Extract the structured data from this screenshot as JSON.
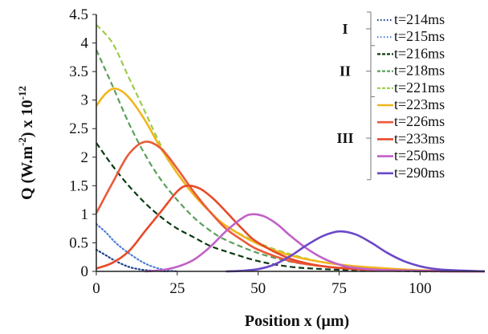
{
  "chart_data": {
    "type": "line",
    "xlabel": "Position x (µm)",
    "ylabel_main": "Q (W.m",
    "ylabel_sup1": "-2",
    "ylabel_mid": ") x 10",
    "ylabel_sup2": "-12",
    "xlim": [
      0,
      120
    ],
    "ylim": [
      0,
      4.5
    ],
    "x_ticks": [
      {
        "value": 0,
        "label": "0"
      },
      {
        "value": 25,
        "label": "25"
      },
      {
        "value": 50,
        "label": "50"
      },
      {
        "value": 75,
        "label": "75"
      },
      {
        "value": 100,
        "label": "100"
      }
    ],
    "y_ticks": [
      {
        "value": 0,
        "label": "0"
      },
      {
        "value": 0.5,
        "label": "0.5"
      },
      {
        "value": 1,
        "label": "1"
      },
      {
        "value": 1.5,
        "label": "1.5"
      },
      {
        "value": 2,
        "label": "2"
      },
      {
        "value": 2.5,
        "label": "2.5"
      },
      {
        "value": 3,
        "label": "3"
      },
      {
        "value": 3.5,
        "label": "3.5"
      },
      {
        "value": 4,
        "label": "4"
      },
      {
        "value": 4.5,
        "label": "4.5"
      }
    ],
    "grid": false,
    "legend_position": "right",
    "series": [
      {
        "name": "t=214ms",
        "color": "#1f3f8f",
        "dash": "dotted",
        "x": [
          0,
          3,
          6,
          10,
          14,
          18,
          22
        ],
        "y": [
          0.38,
          0.28,
          0.18,
          0.08,
          0.03,
          0.01,
          0
        ]
      },
      {
        "name": "t=215ms",
        "color": "#4f7fd8",
        "dash": "dotted",
        "x": [
          0,
          3,
          6,
          10,
          15,
          20,
          25
        ],
        "y": [
          0.83,
          0.68,
          0.5,
          0.32,
          0.14,
          0.04,
          0
        ]
      },
      {
        "name": "t=216ms",
        "color": "#0a3a12",
        "dash": "dashed",
        "x": [
          0,
          5,
          10,
          15,
          20,
          25,
          30,
          35,
          40,
          50,
          60,
          70,
          80,
          90,
          100,
          110,
          120
        ],
        "y": [
          2.25,
          1.85,
          1.5,
          1.2,
          0.95,
          0.75,
          0.6,
          0.45,
          0.35,
          0.18,
          0.08,
          0.04,
          0.02,
          0.01,
          0,
          0,
          0
        ]
      },
      {
        "name": "t=218ms",
        "color": "#5aa05a",
        "dash": "dashed",
        "x": [
          0,
          5,
          10,
          15,
          20,
          25,
          30,
          35,
          40,
          50,
          60,
          70,
          80,
          90,
          100,
          110,
          120
        ],
        "y": [
          3.88,
          3.25,
          2.6,
          2.05,
          1.6,
          1.25,
          0.95,
          0.72,
          0.55,
          0.32,
          0.17,
          0.09,
          0.05,
          0.02,
          0.01,
          0,
          0
        ]
      },
      {
        "name": "t=221ms",
        "color": "#9ccc4a",
        "dash": "dashed",
        "x": [
          0,
          5,
          10,
          15,
          20,
          25,
          30,
          35,
          40,
          50,
          60,
          70,
          80,
          90,
          100,
          110,
          120
        ],
        "y": [
          4.32,
          4.0,
          3.4,
          2.8,
          2.2,
          1.72,
          1.35,
          1.05,
          0.8,
          0.5,
          0.3,
          0.16,
          0.09,
          0.05,
          0.02,
          0.01,
          0
        ]
      },
      {
        "name": "t=223ms",
        "color": "#f2b51c",
        "dash": "solid",
        "x": [
          0,
          3,
          6,
          10,
          15,
          20,
          25,
          30,
          35,
          40,
          50,
          60,
          70,
          80,
          90,
          100,
          110,
          120
        ],
        "y": [
          2.9,
          3.12,
          3.2,
          3.05,
          2.65,
          2.15,
          1.72,
          1.35,
          1.05,
          0.8,
          0.48,
          0.28,
          0.16,
          0.09,
          0.05,
          0.02,
          0.01,
          0
        ]
      },
      {
        "name": "t=226ms",
        "color": "#ea5a3a",
        "dash": "solid",
        "x": [
          0,
          5,
          10,
          15,
          20,
          25,
          30,
          35,
          40,
          45,
          50,
          60,
          70,
          80,
          90,
          100,
          110,
          120
        ],
        "y": [
          1.02,
          1.55,
          2.05,
          2.27,
          2.15,
          1.8,
          1.4,
          1.05,
          0.75,
          0.55,
          0.38,
          0.18,
          0.09,
          0.04,
          0.02,
          0.01,
          0,
          0
        ]
      },
      {
        "name": "t=233ms",
        "color": "#e84a2a",
        "dash": "solid",
        "x": [
          0,
          5,
          10,
          15,
          20,
          25,
          28,
          32,
          36,
          40,
          45,
          50,
          60,
          70,
          80,
          90,
          100,
          110,
          120
        ],
        "y": [
          0.05,
          0.15,
          0.35,
          0.7,
          1.05,
          1.4,
          1.5,
          1.45,
          1.28,
          1.05,
          0.75,
          0.5,
          0.22,
          0.09,
          0.04,
          0.02,
          0.01,
          0,
          0
        ]
      },
      {
        "name": "t=250ms",
        "color": "#c061c8",
        "dash": "solid",
        "x": [
          15,
          20,
          25,
          30,
          35,
          40,
          45,
          48,
          52,
          56,
          60,
          65,
          70,
          75,
          80,
          90,
          100,
          110,
          120
        ],
        "y": [
          0,
          0.02,
          0.08,
          0.2,
          0.42,
          0.7,
          0.93,
          1.0,
          0.96,
          0.82,
          0.62,
          0.4,
          0.23,
          0.12,
          0.06,
          0.02,
          0.01,
          0,
          0
        ]
      },
      {
        "name": "t=290ms",
        "color": "#6a48c8",
        "dash": "solid",
        "x": [
          40,
          45,
          50,
          55,
          60,
          65,
          70,
          75,
          80,
          85,
          90,
          95,
          100,
          105,
          110,
          115,
          120
        ],
        "y": [
          0,
          0.01,
          0.04,
          0.12,
          0.27,
          0.46,
          0.62,
          0.7,
          0.65,
          0.5,
          0.32,
          0.18,
          0.09,
          0.04,
          0.02,
          0.01,
          0
        ]
      }
    ],
    "groups": [
      {
        "label": "I",
        "series_range": [
          0,
          1
        ]
      },
      {
        "label": "II",
        "series_range": [
          2,
          4
        ]
      },
      {
        "label": "III",
        "series_range": [
          5,
          9
        ]
      }
    ]
  }
}
